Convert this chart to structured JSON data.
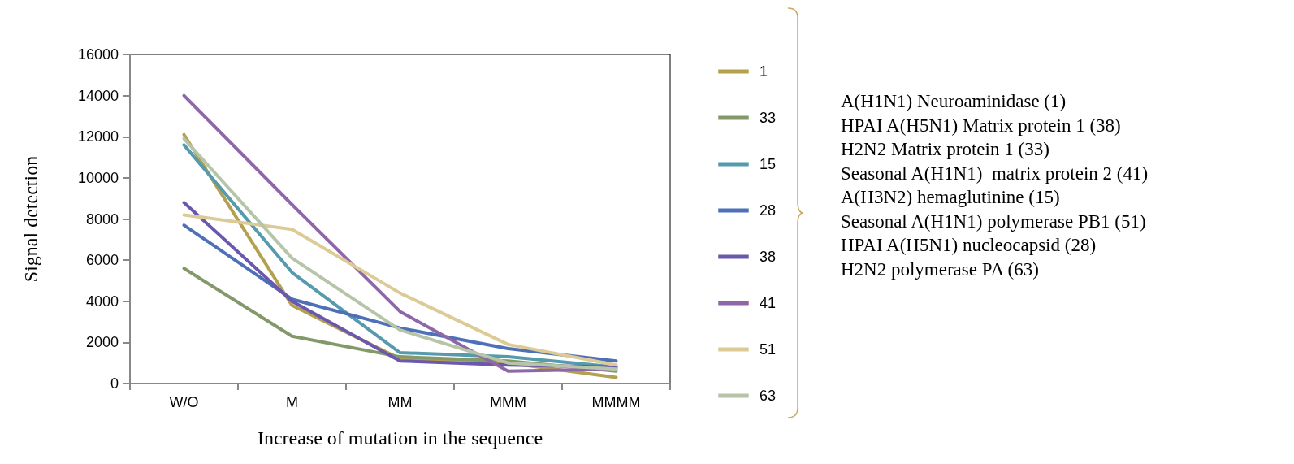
{
  "chart_data": {
    "type": "line",
    "xlabel": "Increase of mutation in the sequence",
    "ylabel": "Signal detection",
    "categories": [
      "W/O",
      "M",
      "MM",
      "MMM",
      "MMMM"
    ],
    "series": [
      {
        "name": "1",
        "color": "#b5a050",
        "values": [
          12100,
          3800,
          1200,
          1000,
          300
        ]
      },
      {
        "name": "33",
        "color": "#84996a",
        "values": [
          5600,
          2300,
          1300,
          1100,
          600
        ]
      },
      {
        "name": "15",
        "color": "#559aad",
        "values": [
          11600,
          5400,
          1500,
          1300,
          800
        ]
      },
      {
        "name": "28",
        "color": "#4d70b8",
        "values": [
          7700,
          4100,
          2700,
          1700,
          1100
        ]
      },
      {
        "name": "38",
        "color": "#6a58ae",
        "values": [
          8800,
          4000,
          1100,
          900,
          800
        ]
      },
      {
        "name": "41",
        "color": "#8f66a8",
        "values": [
          14000,
          8700,
          3500,
          600,
          700
        ]
      },
      {
        "name": "51",
        "color": "#dccb96",
        "values": [
          8200,
          7500,
          4400,
          1900,
          900
        ]
      },
      {
        "name": "63",
        "color": "#b6c4a8",
        "values": [
          11900,
          6100,
          2600,
          1000,
          700
        ]
      }
    ],
    "ylim": [
      0,
      16000
    ],
    "yticks": [
      0,
      2000,
      4000,
      6000,
      8000,
      10000,
      12000,
      14000,
      16000
    ],
    "grid": false,
    "legend": "right",
    "marker": "none",
    "line_style": "solid",
    "annotations": [
      "A(H1N1) Neuroaminidase (1)",
      "HPAI A(H5N1) Matrix protein 1 (38)",
      "H2N2 Matrix protein 1 (33)",
      "Seasonal A(H1N1)  matrix protein 2 (41)",
      "A(H3N2) hemaglutinine (15)",
      "Seasonal A(H1N1) polymerase PB1 (51)",
      "HPAI A(H5N1) nucleocapsid (28)",
      "H2N2 polymerase PA (63)"
    ]
  }
}
